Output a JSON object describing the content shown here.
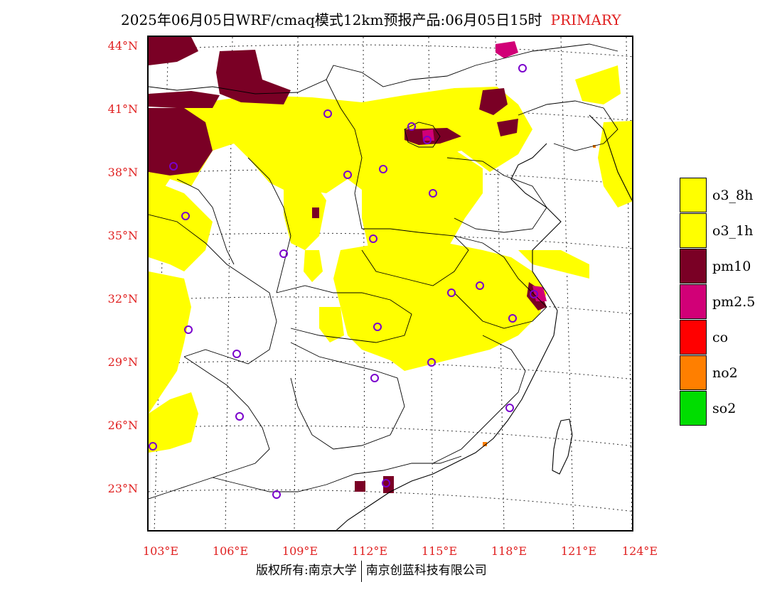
{
  "header": {
    "title": "2025年06月05日WRF/cmaq模式12km预报产品:06月05日15时",
    "tag": "PRIMARY"
  },
  "map": {
    "lat_labels": [
      "44°N",
      "41°N",
      "38°N",
      "35°N",
      "32°N",
      "29°N",
      "26°N",
      "23°N"
    ],
    "lon_labels": [
      "103°E",
      "106°E",
      "109°E",
      "112°E",
      "115°E",
      "118°E",
      "121°E",
      "124°E"
    ],
    "colors": {
      "o3": "#ffff00",
      "pm10": "#7a0025",
      "pm25": "#d10077",
      "co": "#ff0000",
      "no2": "#ff7f00",
      "so2": "#00dd00",
      "station": "#7a00cc",
      "boundary": "#000000"
    }
  },
  "legend": {
    "items": [
      {
        "label": "o3_8h",
        "color": "#ffff00"
      },
      {
        "label": "o3_1h",
        "color": "#ffff00"
      },
      {
        "label": "pm10",
        "color": "#7a0025"
      },
      {
        "label": "pm2.5",
        "color": "#d10077"
      },
      {
        "label": "co",
        "color": "#ff0000"
      },
      {
        "label": "no2",
        "color": "#ff7f00"
      },
      {
        "label": "so2",
        "color": "#00dd00"
      }
    ]
  },
  "footer": {
    "left": "版权所有:南京大学",
    "right": "南京创蓝科技有限公司"
  }
}
